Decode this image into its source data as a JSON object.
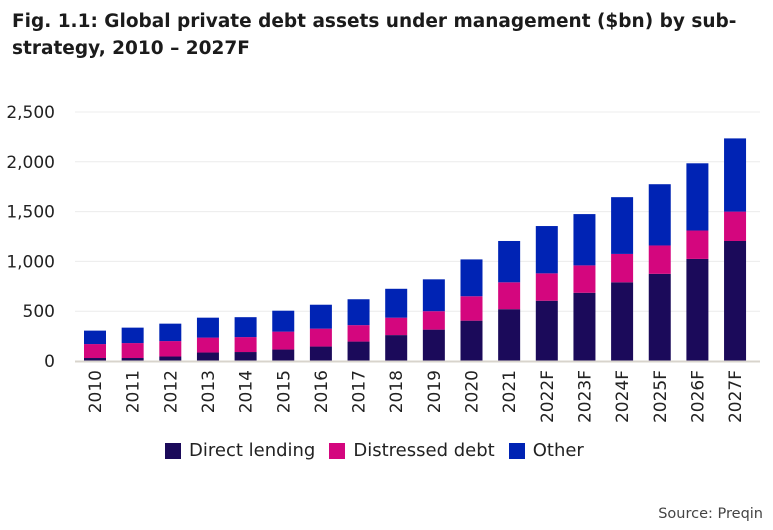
{
  "chart_data": {
    "type": "bar",
    "stacked": true,
    "title": "Fig. 1.1: Global private debt assets under management ($bn) by sub-strategy, 2010 – 2027F",
    "xlabel": "",
    "ylabel": "",
    "ylim": [
      0,
      2500
    ],
    "yticks": [
      "0",
      "500",
      "1,000",
      "1,500",
      "2,000",
      "2,500"
    ],
    "ytick_values": [
      0,
      500,
      1000,
      1500,
      2000,
      2500
    ],
    "grid": true,
    "legend_position": "bottom",
    "categories": [
      "2010",
      "2011",
      "2012",
      "2013",
      "2014",
      "2015",
      "2016",
      "2017",
      "2018",
      "2019",
      "2020",
      "2021",
      "2022F",
      "2023F",
      "2024F",
      "2025F",
      "2026F",
      "2027F"
    ],
    "series": [
      {
        "name": "Direct lending",
        "color": "#1b0a5a",
        "values": [
          30,
          30,
          45,
          85,
          90,
          115,
          145,
          195,
          260,
          315,
          405,
          520,
          605,
          685,
          790,
          875,
          1025,
          1205
        ]
      },
      {
        "name": "Distressed debt",
        "color": "#d4067e",
        "values": [
          140,
          150,
          155,
          150,
          150,
          180,
          180,
          165,
          175,
          185,
          245,
          270,
          275,
          275,
          285,
          285,
          285,
          295
        ]
      },
      {
        "name": "Other",
        "color": "#0023b4",
        "values": [
          135,
          155,
          175,
          200,
          200,
          210,
          240,
          260,
          290,
          320,
          370,
          415,
          475,
          515,
          570,
          615,
          675,
          735
        ]
      }
    ],
    "source": "Source: Preqin"
  }
}
